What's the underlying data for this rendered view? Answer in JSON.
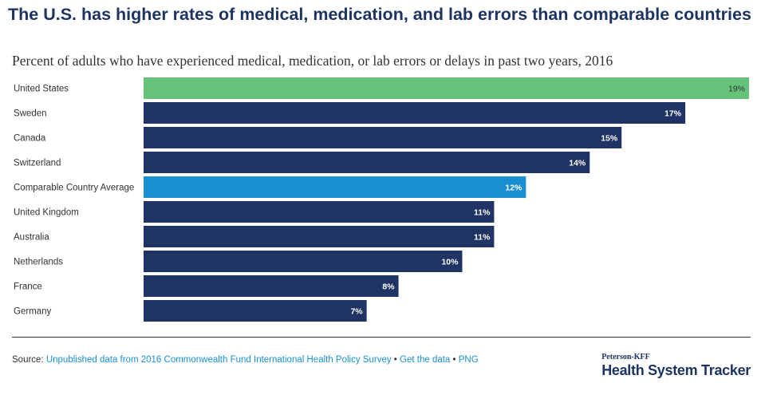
{
  "title": "The U.S. has higher rates of medical, medication, and lab errors than comparable countries",
  "subtitle": "Percent of adults who have experienced medical, medication, or lab errors or delays in past two years, 2016",
  "chart_data": {
    "type": "bar",
    "orientation": "horizontal",
    "title": "The U.S. has higher rates of medical, medication, and lab errors than comparable countries",
    "subtitle": "Percent of adults who have experienced medical, medication, or lab errors or delays in past two years, 2016",
    "categories": [
      "United States",
      "Sweden",
      "Canada",
      "Switzerland",
      "Comparable Country Average",
      "United Kingdom",
      "Australia",
      "Netherlands",
      "France",
      "Germany"
    ],
    "values": [
      19,
      17,
      15,
      14,
      12,
      11,
      11,
      10,
      8,
      7
    ],
    "value_labels": [
      "19%",
      "17%",
      "15%",
      "14%",
      "12%",
      "11%",
      "11%",
      "10%",
      "8%",
      "7%"
    ],
    "xlim": [
      0,
      19
    ],
    "grid": false,
    "colors": {
      "highlight": "#66c47a",
      "average": "#1a8fd0",
      "default": "#1f3464"
    },
    "bar_color_keys": [
      "highlight",
      "default",
      "default",
      "default",
      "average",
      "default",
      "default",
      "default",
      "default",
      "default"
    ]
  },
  "footer": {
    "source_prefix": "Source: ",
    "source_link": "Unpublished data from 2016 Commonwealth Fund International Health Policy Survey",
    "separator1": " • ",
    "get_data": "Get the data",
    "separator2": " • ",
    "png": "PNG"
  },
  "brand": {
    "top": "Peterson-KFF",
    "main": "Health System Tracker"
  }
}
